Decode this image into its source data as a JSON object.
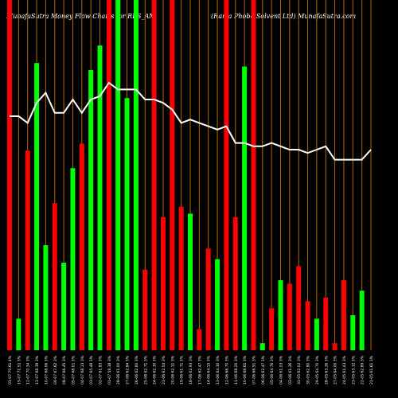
{
  "header": {
    "left": "MunafaSutra  Money Flow  Charts for RBS_AM",
    "right": "(Rama Phobo  Solvent Ltd) MunafaSutra.com"
  },
  "colors": {
    "background": "#000000",
    "up": "#00ff00",
    "down": "#ff0000",
    "grid": "#b36a00",
    "line": "#ffffff",
    "label": "#ffffff"
  },
  "chart_data": {
    "type": "bar",
    "x_count": 41,
    "ylim": [
      0,
      100
    ],
    "grid": "vertical",
    "categories": [
      "01-07 70.61 4%",
      "15-07 71.51 3%",
      "12-07 70.34 3%",
      "11-07 68.39 3%",
      "10-07 68.06 3%",
      "09-07 67.62 3%",
      "08-07 66.45 3%",
      "05-07 68.01 3%",
      "04-07 68.13 3%",
      "03-07 65.48 3%",
      "02-07 61.83 3%",
      "01-07 58.38 3%",
      "28-06 61.00 3%",
      "27-06 62.84 3%",
      "26-06 62.60 3%",
      "25-06 62.71 3%",
      "24-06 62.30 3%",
      "21-06 62.54 3%",
      "20-06 62.11 3%",
      "19-06 61.71 3%",
      "18-06 62.93 3%",
      "17-06 62.47 3%",
      "14-06 64.15 3%",
      "13-06 64.30 3%",
      "12-06 66.70 3%",
      "11-06 68.20 3%",
      "10-06 68.61 3%",
      "07-06 66.51 3%",
      "06-06 62.47 3%",
      "05-06 64.76 3%",
      "04-06 61.03 3%",
      "03-06 61.26 3%",
      "31-05 62.02 3%",
      "30-05 62.80 3%",
      "29-05 64.70 3%",
      "28-05 63.26 3%",
      "27-05 64.00 3%",
      "24-05 61.43 3%",
      "23-05 63.12 3%",
      "22-05 62.89 3%",
      "21-05 61.61 3%"
    ],
    "series": [
      {
        "kind": "bars",
        "values": [
          100,
          9,
          57,
          82,
          30,
          42,
          25,
          52,
          59,
          80,
          87,
          100,
          100,
          72,
          100,
          23,
          100,
          38,
          100,
          41,
          39,
          6,
          29,
          26,
          100,
          38,
          81,
          100,
          2,
          12,
          20,
          19,
          24,
          14,
          9,
          15,
          2,
          20,
          10,
          17,
          0
        ],
        "directions": [
          "down",
          "up",
          "down",
          "up",
          "up",
          "down",
          "up",
          "up",
          "down",
          "up",
          "up",
          "down",
          "up",
          "up",
          "up",
          "down",
          "down",
          "down",
          "down",
          "down",
          "up",
          "down",
          "down",
          "up",
          "down",
          "down",
          "up",
          "down",
          "up",
          "down",
          "up",
          "down",
          "down",
          "down",
          "up",
          "down",
          "down",
          "down",
          "up",
          "up",
          "down"
        ]
      },
      {
        "kind": "line",
        "values": [
          70,
          70,
          68,
          74,
          77,
          71,
          71,
          75,
          71,
          75,
          76,
          80,
          78,
          78,
          78,
          75,
          75,
          74,
          72,
          68,
          69,
          68,
          67,
          66,
          67,
          62,
          62,
          61,
          61,
          62,
          61,
          60,
          60,
          59,
          60,
          61,
          57,
          57,
          57,
          57,
          60
        ]
      }
    ]
  }
}
